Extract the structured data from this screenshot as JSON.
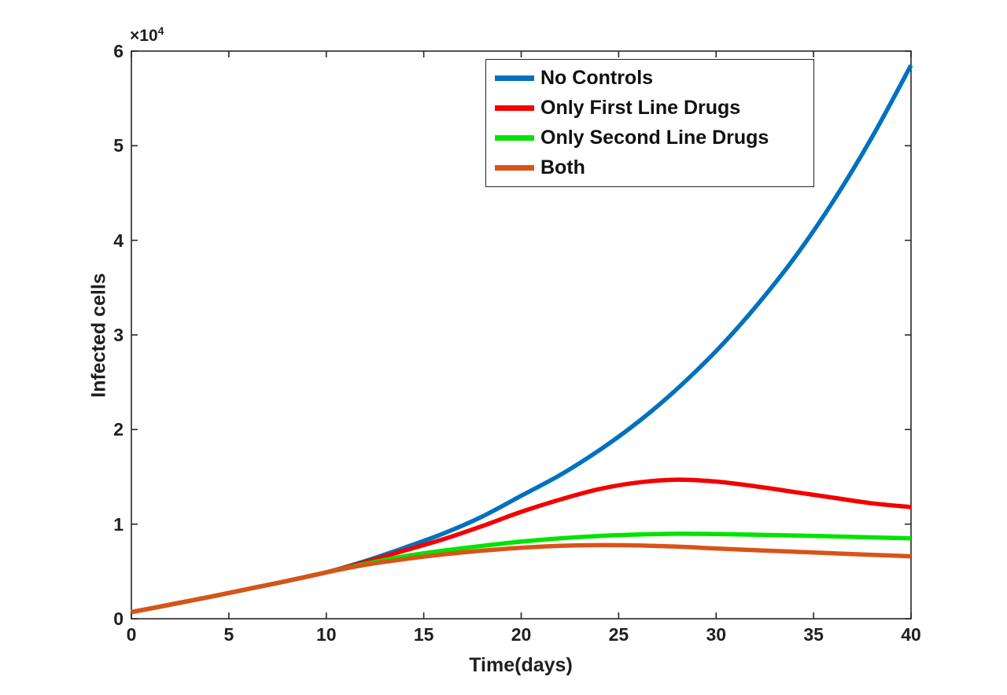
{
  "figure": {
    "background": "#ffffff",
    "frame_color": "#262626"
  },
  "chart_data": {
    "type": "line",
    "title": "",
    "xlabel": "Time(days)",
    "ylabel": "Infected cells",
    "grid": false,
    "legend_position": "top-right-inside",
    "xlim": [
      0,
      40
    ],
    "ylim": [
      0,
      60000
    ],
    "xticks": [
      0,
      5,
      10,
      15,
      20,
      25,
      30,
      35,
      40
    ],
    "yticks": [
      0,
      1,
      2,
      3,
      4,
      5,
      6
    ],
    "y_tick_multiplier": 10000,
    "y_exponent_label": {
      "base": "×10",
      "power": "4"
    },
    "x": [
      0,
      2,
      4,
      6,
      8,
      10,
      12,
      14,
      16,
      18,
      20,
      22,
      24,
      26,
      28,
      30,
      32,
      34,
      36,
      38,
      40
    ],
    "series": [
      {
        "name": "No Controls",
        "color": "#0072BD",
        "values": [
          700,
          1500,
          2300,
          3150,
          4000,
          4900,
          6100,
          7500,
          9000,
          10800,
          13000,
          15200,
          17800,
          20800,
          24300,
          28300,
          32900,
          38100,
          44100,
          50900,
          58500
        ]
      },
      {
        "name": "Only First Line Drugs",
        "color": "#F40000",
        "values": [
          700,
          1500,
          2300,
          3150,
          4000,
          4900,
          6000,
          7200,
          8400,
          9800,
          11300,
          12600,
          13700,
          14400,
          14700,
          14500,
          14000,
          13400,
          12800,
          12200,
          11800
        ]
      },
      {
        "name": "Only Second Line Drugs",
        "color": "#00E400",
        "values": [
          700,
          1500,
          2300,
          3150,
          4000,
          4900,
          5800,
          6600,
          7200,
          7700,
          8150,
          8500,
          8750,
          8900,
          8980,
          8950,
          8880,
          8800,
          8700,
          8600,
          8500
        ]
      },
      {
        "name": "Both",
        "color": "#D95319",
        "values": [
          700,
          1500,
          2300,
          3150,
          4000,
          4900,
          5700,
          6300,
          6800,
          7200,
          7500,
          7700,
          7780,
          7750,
          7620,
          7430,
          7250,
          7080,
          6920,
          6760,
          6600
        ]
      }
    ]
  }
}
